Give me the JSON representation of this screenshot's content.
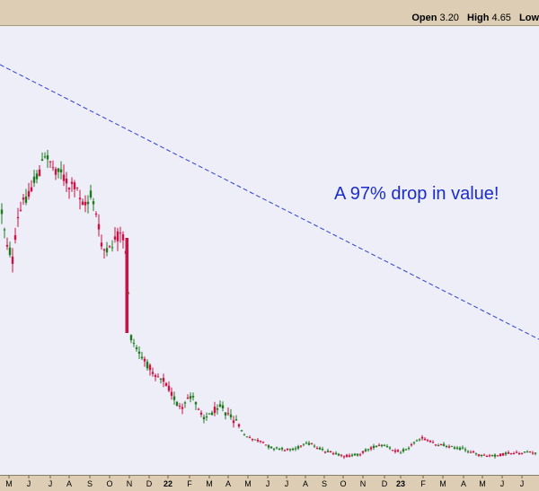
{
  "quote": {
    "open_label": "Open",
    "open_value": "3.20",
    "high_label": "High",
    "high_value": "4.65",
    "low_label": "Low"
  },
  "annotation": "A 97% drop in value!",
  "colors": {
    "up": "#1f7a1f",
    "down": "#cc1144",
    "trend": "#2f3fcf",
    "plot_bg": "#eeeef8",
    "axis_bg": "#dccdb4"
  },
  "chart_data": {
    "type": "candlestick",
    "title": "",
    "xlabel": "",
    "ylabel": "",
    "grid": false,
    "x_tick_labels": [
      "M",
      "J",
      "J",
      "A",
      "S",
      "O",
      "N",
      "D",
      "22",
      "F",
      "M",
      "A",
      "M",
      "J",
      "J",
      "A",
      "S",
      "O",
      "N",
      "D",
      "23",
      "F",
      "M",
      "A",
      "M",
      "J",
      "J"
    ],
    "trendline": {
      "style": "dashed",
      "from_month_index": 0,
      "to_month_index": 26
    },
    "monthly_approx_close": [
      50,
      60,
      62,
      55,
      40,
      35,
      8,
      6,
      5,
      4.5,
      4,
      2,
      1.6,
      1.4,
      1.3,
      1.3,
      1.1,
      1.1,
      1.2,
      1.3,
      1.2,
      1.5,
      1.3,
      1.2,
      1.1,
      1.0,
      1.1
    ]
  }
}
